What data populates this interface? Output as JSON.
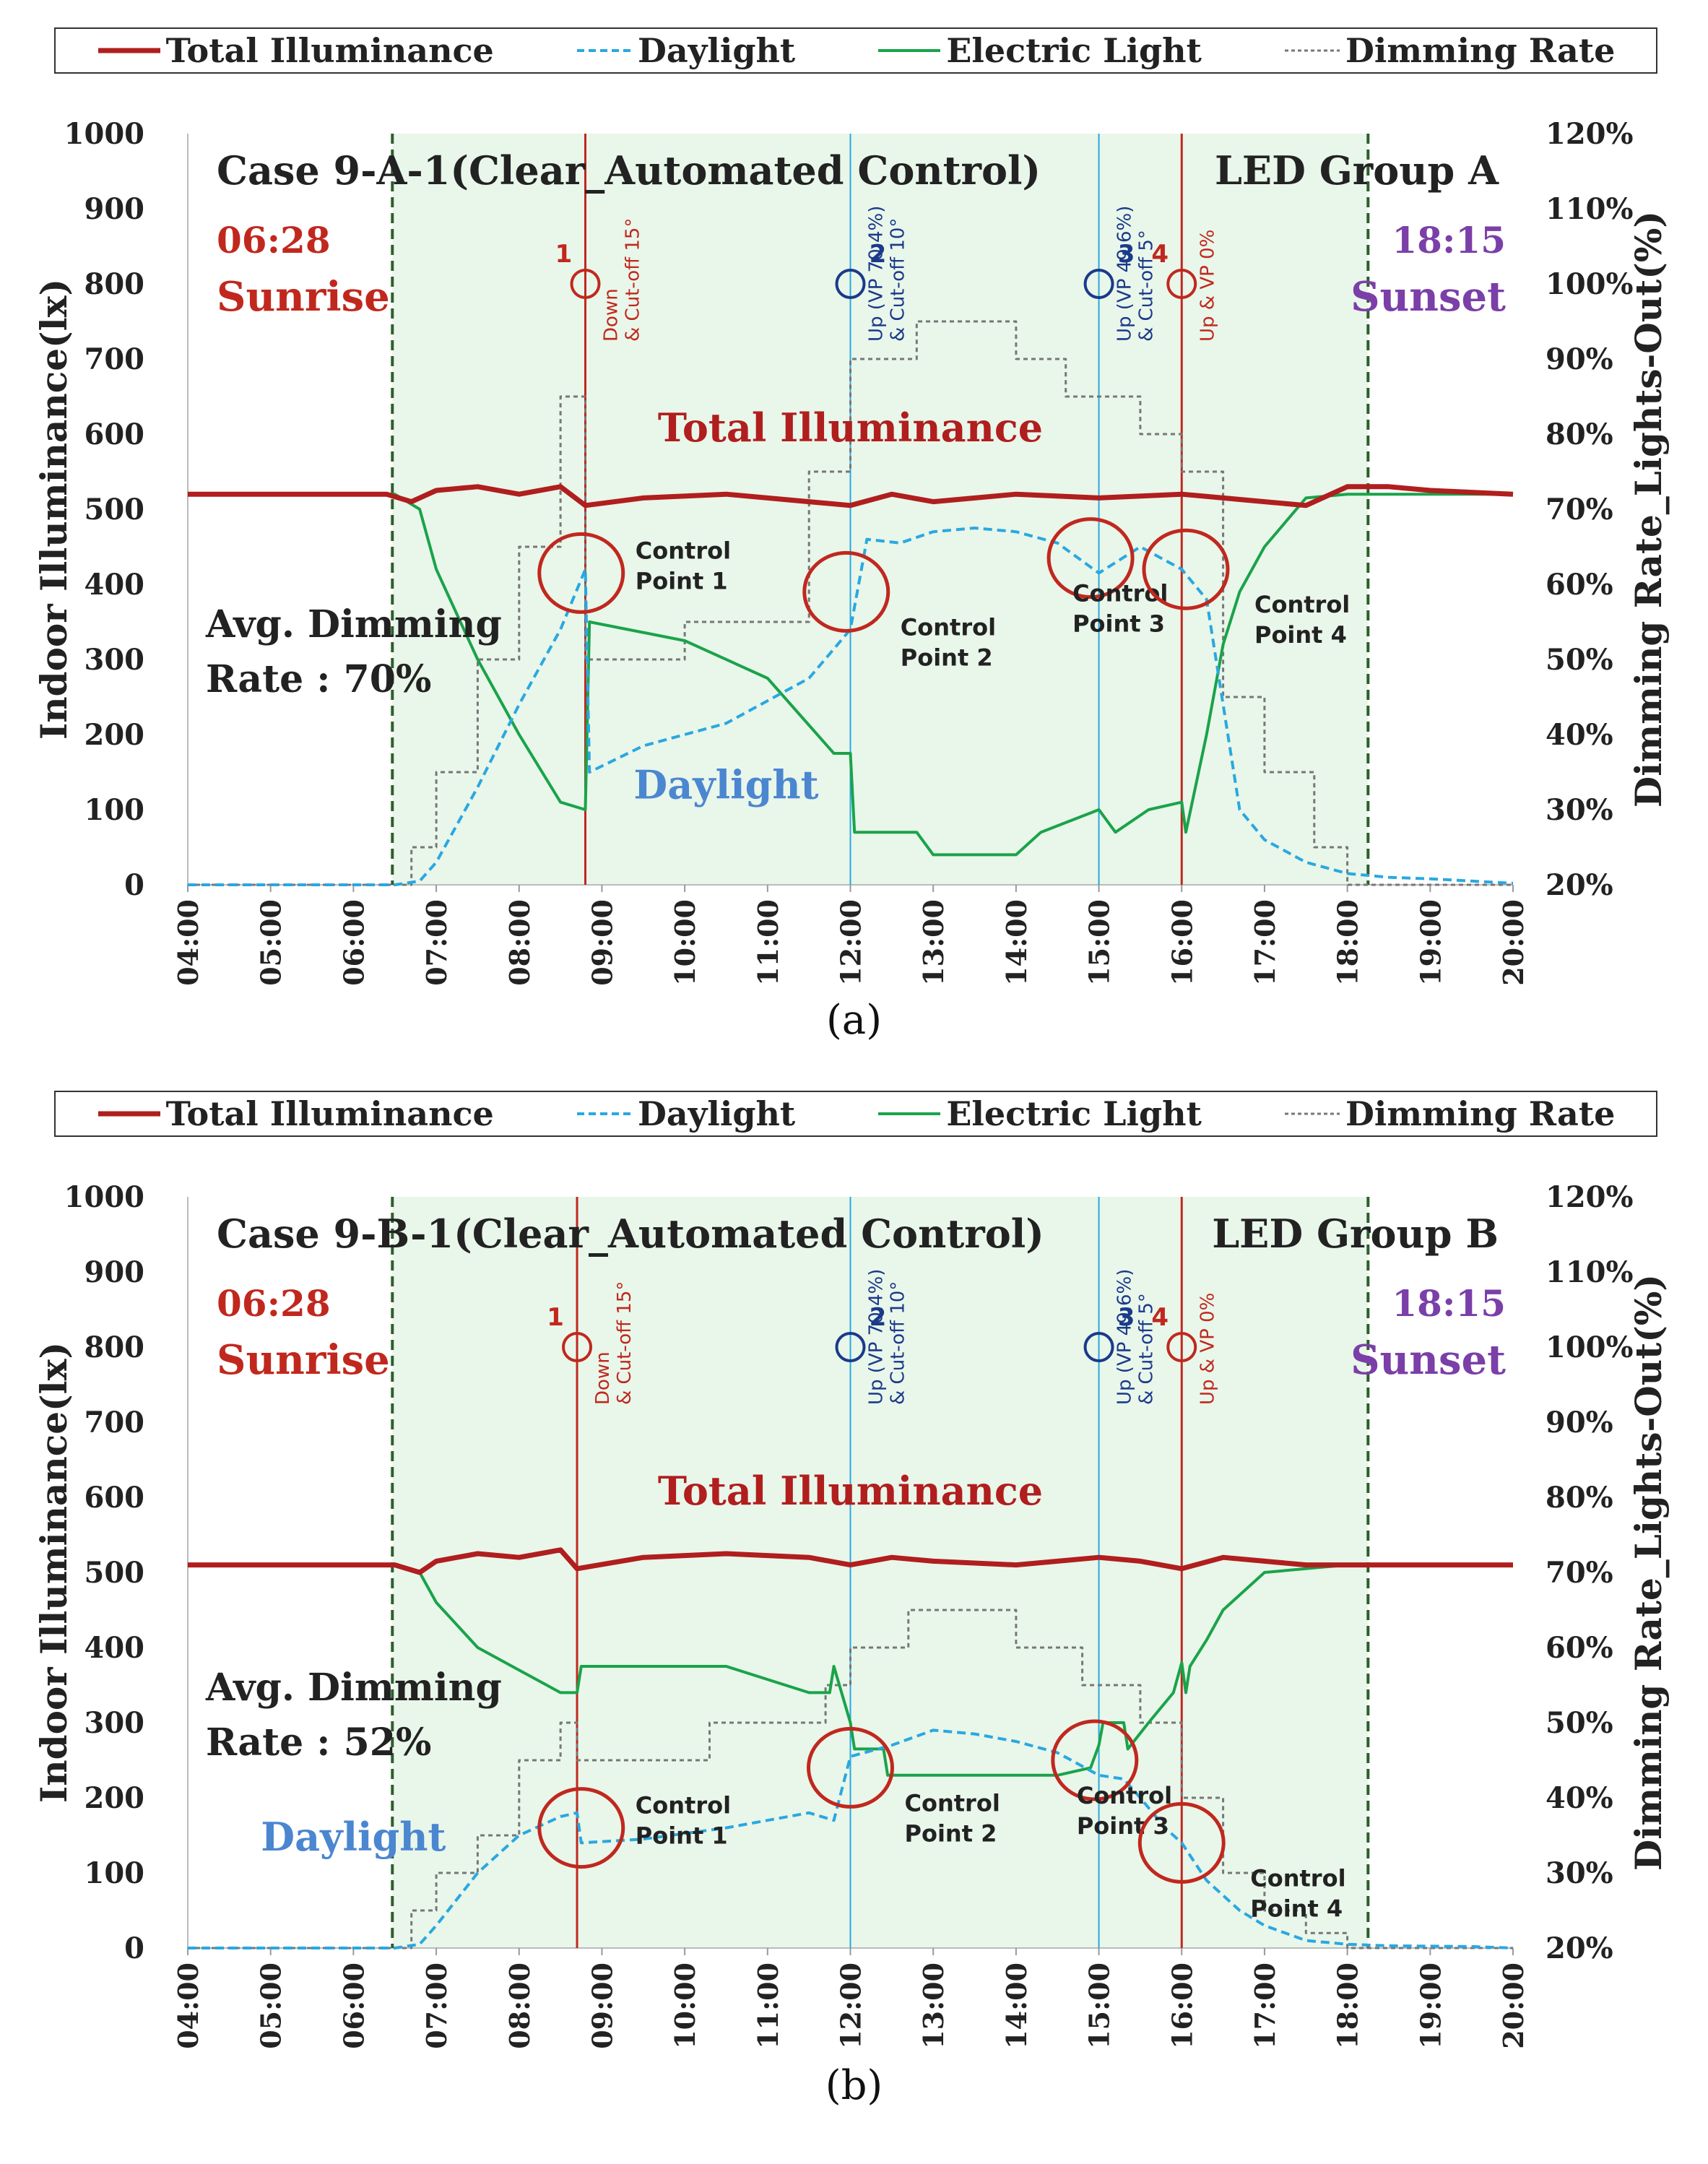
{
  "legend": {
    "total": "Total Illuminance",
    "daylight": "Daylight",
    "electric": "Electric Light",
    "dimming": "Dimming Rate"
  },
  "colors": {
    "total": "#b01e1e",
    "daylight": "#29a8e0",
    "electric": "#1aa34a",
    "dimming": "#777777",
    "sunrise": "#c0281e",
    "sunset": "#7b3fa8",
    "night_line": "#1a3a8a"
  },
  "chart_data": [
    {
      "type": "line",
      "title": "Case 9-A-1(Clear_Automated Control)",
      "group_label": "LED Group A",
      "caption": "(a)",
      "ylabel": "Indoor Illuminance(lx)",
      "y2label": "Dimming Rate_Lights-Out(%)",
      "xticks": [
        "04:00",
        "05:00",
        "06:00",
        "07:00",
        "08:00",
        "09:00",
        "10:00",
        "11:00",
        "12:00",
        "13:00",
        "14:00",
        "15:00",
        "16:00",
        "17:00",
        "18:00",
        "19:00",
        "20:00"
      ],
      "yticks": [
        "0",
        "100",
        "200",
        "300",
        "400",
        "500",
        "600",
        "700",
        "800",
        "900",
        "1000"
      ],
      "y2ticks": [
        "20%",
        "30%",
        "40%",
        "50%",
        "60%",
        "70%",
        "80%",
        "90%",
        "100%",
        "110%",
        "120%"
      ],
      "ylim": [
        0,
        1000
      ],
      "y2lim": [
        20,
        120
      ],
      "sunrise": {
        "time": "06:28",
        "label": "Sunrise",
        "hour": 6.47
      },
      "sunset": {
        "time": "18:15",
        "label": "Sunset",
        "hour": 18.25
      },
      "avg_dimming": [
        "Avg. Dimming",
        "Rate : 70%"
      ],
      "total_label": "Total Illuminance",
      "daylight_label": "Daylight",
      "markers": [
        {
          "num": "1",
          "hour": 8.8,
          "text": [
            "Down",
            "& Cut-off 15°"
          ],
          "color": "red"
        },
        {
          "num": "2",
          "hour": 12.0,
          "text": [
            "Up (VP 70.4%)",
            "& Cut-off 10°"
          ],
          "color": "navy"
        },
        {
          "num": "3",
          "hour": 15.0,
          "text": [
            "Up (VP 49.6%)",
            "& Cut-off 5°"
          ],
          "color": "navy"
        },
        {
          "num": "4",
          "hour": 16.0,
          "text": [
            "Up & VP 0%"
          ],
          "color": "red"
        }
      ],
      "control_points": [
        {
          "label": [
            "Control",
            "Point 1"
          ],
          "hour": 8.75,
          "y": 415
        },
        {
          "label": [
            "Control",
            "Point 2"
          ],
          "hour": 11.95,
          "y": 390
        },
        {
          "label": [
            "Control",
            "Point 3"
          ],
          "hour": 14.9,
          "y": 435
        },
        {
          "label": [
            "Control",
            "Point 4"
          ],
          "hour": 16.05,
          "y": 420
        }
      ],
      "series": [
        {
          "name": "Total Illuminance",
          "axis": "left",
          "x": [
            4,
            6.4,
            6.7,
            7.0,
            7.5,
            8.0,
            8.5,
            8.8,
            9.5,
            10.5,
            11.5,
            12.0,
            12.5,
            13.0,
            14.0,
            15.0,
            16.0,
            16.5,
            17.0,
            17.5,
            18.0,
            18.5,
            19.0,
            20
          ],
          "values": [
            520,
            520,
            510,
            525,
            530,
            520,
            530,
            505,
            515,
            520,
            510,
            505,
            520,
            510,
            520,
            515,
            520,
            515,
            510,
            505,
            530,
            530,
            525,
            520
          ]
        },
        {
          "name": "Daylight",
          "axis": "left",
          "x": [
            4,
            6.5,
            6.8,
            7.0,
            7.5,
            8.0,
            8.5,
            8.8,
            8.85,
            9.5,
            10.5,
            11.5,
            12.0,
            12.2,
            12.6,
            13.0,
            13.5,
            14.0,
            14.5,
            15.0,
            15.5,
            16.0,
            16.3,
            16.5,
            16.7,
            17.0,
            17.5,
            18.0,
            18.5,
            19.0,
            19.5,
            20
          ],
          "values": [
            0,
            0,
            5,
            30,
            130,
            240,
            340,
            420,
            150,
            185,
            215,
            275,
            340,
            460,
            455,
            470,
            475,
            470,
            455,
            415,
            450,
            420,
            380,
            240,
            100,
            60,
            30,
            15,
            10,
            8,
            5,
            2
          ]
        },
        {
          "name": "Electric Light",
          "axis": "left",
          "x": [
            4,
            6.5,
            6.8,
            7.0,
            7.5,
            8.0,
            8.5,
            8.8,
            8.85,
            10.0,
            11.0,
            11.8,
            12.0,
            12.05,
            12.8,
            13.0,
            14.0,
            14.3,
            15.0,
            15.2,
            15.6,
            16.0,
            16.05,
            16.3,
            16.5,
            16.7,
            17.0,
            17.5,
            18.0,
            20
          ],
          "values": [
            520,
            520,
            500,
            420,
            300,
            200,
            110,
            100,
            350,
            325,
            275,
            175,
            175,
            70,
            70,
            40,
            40,
            70,
            100,
            70,
            100,
            110,
            70,
            200,
            320,
            390,
            450,
            515,
            520,
            520
          ]
        },
        {
          "name": "Dimming Rate",
          "axis": "right",
          "x": [
            4,
            6.7,
            6.7,
            7.0,
            7.0,
            7.5,
            7.5,
            8.0,
            8.0,
            8.5,
            8.5,
            8.8,
            8.8,
            10.0,
            10.0,
            11.5,
            11.5,
            12.0,
            12.0,
            12.8,
            12.8,
            14.0,
            14.0,
            14.6,
            14.6,
            15.5,
            15.5,
            16.0,
            16.0,
            16.5,
            16.5,
            17.0,
            17.0,
            17.6,
            17.6,
            18.0,
            18.0,
            20
          ],
          "values": [
            20,
            20,
            25,
            25,
            35,
            35,
            50,
            50,
            65,
            65,
            85,
            85,
            50,
            50,
            55,
            55,
            75,
            75,
            90,
            90,
            95,
            95,
            90,
            90,
            85,
            85,
            80,
            80,
            75,
            75,
            45,
            45,
            35,
            35,
            25,
            25,
            20,
            20
          ]
        }
      ]
    },
    {
      "type": "line",
      "title": "Case 9-B-1(Clear_Automated Control)",
      "group_label": "LED Group B",
      "caption": "(b)",
      "ylabel": "Indoor Illuminance(lx)",
      "y2label": "Dimming Rate_Lights-Out(%)",
      "xticks": [
        "04:00",
        "05:00",
        "06:00",
        "07:00",
        "08:00",
        "09:00",
        "10:00",
        "11:00",
        "12:00",
        "13:00",
        "14:00",
        "15:00",
        "16:00",
        "17:00",
        "18:00",
        "19:00",
        "20:00"
      ],
      "yticks": [
        "0",
        "100",
        "200",
        "300",
        "400",
        "500",
        "600",
        "700",
        "800",
        "900",
        "1000"
      ],
      "y2ticks": [
        "20%",
        "30%",
        "40%",
        "50%",
        "60%",
        "70%",
        "80%",
        "90%",
        "100%",
        "110%",
        "120%"
      ],
      "ylim": [
        0,
        1000
      ],
      "y2lim": [
        20,
        120
      ],
      "sunrise": {
        "time": "06:28",
        "label": "Sunrise",
        "hour": 6.47
      },
      "sunset": {
        "time": "18:15",
        "label": "Sunset",
        "hour": 18.25
      },
      "avg_dimming": [
        "Avg. Dimming",
        "Rate : 52%"
      ],
      "total_label": "Total Illuminance",
      "daylight_label": "Daylight",
      "markers": [
        {
          "num": "1",
          "hour": 8.7,
          "text": [
            "Down",
            "& Cut-off 15°"
          ],
          "color": "red"
        },
        {
          "num": "2",
          "hour": 12.0,
          "text": [
            "Up (VP 70.4%)",
            "& Cut-off 10°"
          ],
          "color": "navy"
        },
        {
          "num": "3",
          "hour": 15.0,
          "text": [
            "Up (VP 49.6%)",
            "& Cut-off 5°"
          ],
          "color": "navy"
        },
        {
          "num": "4",
          "hour": 16.0,
          "text": [
            "Up & VP 0%"
          ],
          "color": "red"
        }
      ],
      "control_points": [
        {
          "label": [
            "Control",
            "Point 1"
          ],
          "hour": 8.75,
          "y": 160
        },
        {
          "label": [
            "Control",
            "Point 2"
          ],
          "hour": 12.0,
          "y": 240
        },
        {
          "label": [
            "Control",
            "Point 3"
          ],
          "hour": 14.95,
          "y": 250
        },
        {
          "label": [
            "Control",
            "Point 4"
          ],
          "hour": 16.0,
          "y": 140
        }
      ],
      "series": [
        {
          "name": "Total Illuminance",
          "axis": "left",
          "x": [
            4,
            6.5,
            6.8,
            7.0,
            7.5,
            8.0,
            8.5,
            8.7,
            9.5,
            10.5,
            11.5,
            12.0,
            12.5,
            13.0,
            14.0,
            15.0,
            15.5,
            16.0,
            16.5,
            17.0,
            17.5,
            18.0,
            20
          ],
          "values": [
            510,
            510,
            500,
            515,
            525,
            520,
            530,
            505,
            520,
            525,
            520,
            510,
            520,
            515,
            510,
            520,
            515,
            505,
            520,
            515,
            510,
            510,
            510
          ]
        },
        {
          "name": "Daylight",
          "axis": "left",
          "x": [
            4,
            6.5,
            6.8,
            7.0,
            7.5,
            8.0,
            8.5,
            8.7,
            8.75,
            9.5,
            10.5,
            11.5,
            11.8,
            12.0,
            12.5,
            13.0,
            13.5,
            14.0,
            14.5,
            15.0,
            15.3,
            15.5,
            15.8,
            16.0,
            16.3,
            16.7,
            17.0,
            17.5,
            18.0,
            18.5,
            19.5,
            20
          ],
          "values": [
            0,
            0,
            5,
            30,
            100,
            150,
            175,
            180,
            140,
            145,
            160,
            180,
            170,
            255,
            270,
            290,
            285,
            275,
            260,
            230,
            225,
            200,
            160,
            140,
            90,
            50,
            30,
            10,
            5,
            3,
            2,
            0
          ]
        },
        {
          "name": "Electric Light",
          "axis": "left",
          "x": [
            4,
            6.5,
            6.8,
            7.0,
            7.5,
            8.0,
            8.5,
            8.7,
            8.75,
            10.5,
            11.5,
            11.75,
            11.8,
            12.0,
            12.05,
            12.4,
            12.45,
            13.5,
            14.5,
            14.9,
            15.0,
            15.05,
            15.3,
            15.35,
            15.6,
            15.9,
            16.0,
            16.05,
            16.1,
            16.3,
            16.5,
            17.0,
            17.5,
            18.0,
            20
          ],
          "values": [
            510,
            510,
            500,
            460,
            400,
            370,
            340,
            340,
            375,
            375,
            340,
            340,
            375,
            300,
            265,
            265,
            230,
            230,
            230,
            240,
            270,
            300,
            300,
            265,
            300,
            340,
            380,
            340,
            375,
            410,
            450,
            500,
            505,
            510,
            510
          ]
        },
        {
          "name": "Dimming Rate",
          "axis": "right",
          "x": [
            4,
            6.7,
            6.7,
            7.0,
            7.0,
            7.5,
            7.5,
            8.0,
            8.0,
            8.5,
            8.5,
            8.7,
            8.7,
            10.3,
            10.3,
            11.7,
            11.7,
            12.0,
            12.0,
            12.7,
            12.7,
            14.0,
            14.0,
            14.8,
            14.8,
            15.5,
            15.5,
            16.0,
            16.0,
            16.5,
            16.5,
            17.0,
            17.0,
            17.5,
            17.5,
            18.0,
            18.0,
            20
          ],
          "values": [
            20,
            20,
            25,
            25,
            30,
            30,
            35,
            35,
            45,
            45,
            50,
            50,
            45,
            45,
            50,
            50,
            55,
            55,
            60,
            60,
            65,
            65,
            60,
            60,
            55,
            55,
            50,
            50,
            40,
            40,
            30,
            30,
            25,
            25,
            22,
            22,
            20,
            20
          ]
        }
      ]
    }
  ]
}
